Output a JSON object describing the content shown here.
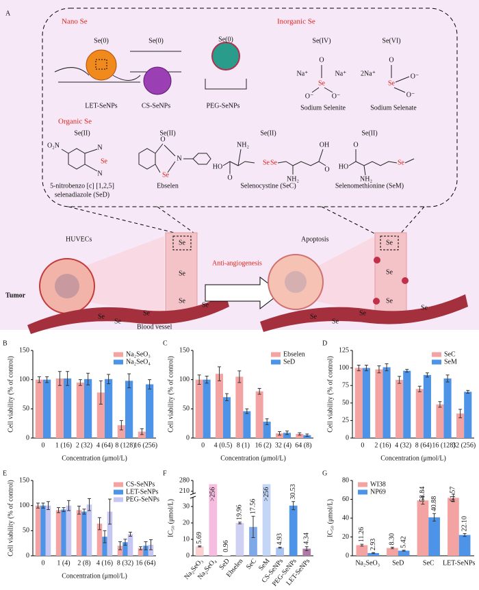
{
  "panel_a": {
    "label": "A",
    "titles": [
      "Nano Se",
      "Inorganic Se",
      "Organic Se"
    ],
    "compounds": [
      {
        "state": "Se(0)",
        "name_lines": [
          "LET-SeNPs"
        ]
      },
      {
        "state": "Se(0)",
        "name_lines": [
          "CS-SeNPs"
        ]
      },
      {
        "state": "Se(0)",
        "name_lines": [
          "PEG-SeNPs"
        ]
      },
      {
        "state": "Se(IV)",
        "name_lines": [
          "Sodium Selenite"
        ]
      },
      {
        "state": "Se(VI)",
        "name_lines": [
          "Sodium Selenate"
        ]
      },
      {
        "state": "Se(II)",
        "name_lines": [
          "5-nitrobenzo [c] [1,2,5]",
          "selenadiazole (SeD)"
        ]
      },
      {
        "state": "Se(II)",
        "name_lines": [
          "Ebselen"
        ]
      },
      {
        "state": "Se(II)",
        "name_lines": [
          "Selenocystine (SeC)"
        ]
      },
      {
        "state": "Se(II)",
        "name_lines": [
          "Selenomethionine (SeM)"
        ]
      }
    ],
    "atoms": [
      "Na⁺",
      "Na⁺",
      "O",
      "Se",
      "O⁻",
      "O⁻",
      "2Na⁺",
      "O",
      "Se",
      "O⁻",
      "O⁻",
      "O₂N",
      "N",
      "Se",
      "N",
      "O",
      "N",
      "Se",
      "HO",
      "O",
      "NH₂",
      "Se",
      "Se",
      "NH₂",
      "OH",
      "O",
      "HO",
      "O",
      "NH₂",
      "Se"
    ],
    "scene": {
      "cells": "HUVECs",
      "effect": "Anti-angiogenesis",
      "outcome": "Apoptosis",
      "tumor": "Tumor",
      "vessel": "Blood vessel",
      "element": "Se"
    }
  },
  "chart_data": [
    {
      "type": "bar",
      "panel": "B",
      "ylabel": "Cell viability (% of control)",
      "xlabel": "Concentration (μmol/L)",
      "categories": [
        "0",
        "1 (16)",
        "2 (32)",
        "4 (64)",
        "8 (128)",
        "16 (256)"
      ],
      "series": [
        {
          "name": "Na₂SeO₃",
          "color": "#f4a3a3",
          "values": [
            100,
            102,
            95,
            78,
            22,
            11
          ],
          "errors": [
            5,
            12,
            5,
            20,
            8,
            5
          ]
        },
        {
          "name": "Na₂SeO₄",
          "color": "#4d94e8",
          "values": [
            100,
            102,
            101,
            101,
            98,
            92
          ],
          "errors": [
            5,
            12,
            10,
            8,
            12,
            8
          ]
        }
      ],
      "ylim": [
        0,
        150
      ],
      "yticks": [
        0,
        50,
        100,
        150
      ],
      "legend": "top-right"
    },
    {
      "type": "bar",
      "panel": "C",
      "ylabel": "Cell viability (% of control)",
      "xlabel": "Concentration (μmol/L)",
      "categories": [
        "0",
        "4 (0.5)",
        "8 (1)",
        "16 (2)",
        "32 (4)",
        "64 (8)"
      ],
      "series": [
        {
          "name": "Ebselen",
          "color": "#f4a3a3",
          "values": [
            100,
            110,
            105,
            80,
            8,
            7
          ],
          "errors": [
            8,
            12,
            10,
            5,
            3,
            2
          ]
        },
        {
          "name": "SeD",
          "color": "#4d94e8",
          "values": [
            100,
            70,
            46,
            28,
            9,
            5
          ],
          "errors": [
            6,
            6,
            4,
            5,
            3,
            2
          ]
        }
      ],
      "ylim": [
        0,
        150
      ],
      "yticks": [
        0,
        50,
        100,
        150
      ],
      "legend": "top-right"
    },
    {
      "type": "bar",
      "panel": "D",
      "ylabel": "Cell viability (% of control)",
      "xlabel": "Concentration (μmol/L)",
      "categories": [
        "0",
        "2 (16)",
        "4 (32)",
        "8 (64)",
        "16 (128)",
        "32 (256)"
      ],
      "series": [
        {
          "name": "SeC",
          "color": "#f4a3a3",
          "values": [
            100,
            98,
            83,
            70,
            48,
            35
          ],
          "errors": [
            4,
            5,
            5,
            4,
            4,
            6
          ]
        },
        {
          "name": "SeM",
          "color": "#4d94e8",
          "values": [
            100,
            101,
            96,
            90,
            85,
            66
          ],
          "errors": [
            4,
            5,
            2,
            3,
            5,
            2
          ]
        }
      ],
      "ylim": [
        0,
        125
      ],
      "yticks": [
        0,
        25,
        50,
        75,
        100,
        125
      ],
      "legend": "top-right"
    },
    {
      "type": "bar",
      "panel": "E",
      "ylabel": "Cell viability (% of control)",
      "xlabel": "Concentration (μmol/L)",
      "categories": [
        "0",
        "1 (4)",
        "2 (8)",
        "4 (16)",
        "8 (32)",
        "16 (64)"
      ],
      "series": [
        {
          "name": "CS-SeNPs",
          "color": "#f4a3a3",
          "values": [
            100,
            91,
            91,
            64,
            20,
            15
          ],
          "errors": [
            5,
            5,
            8,
            12,
            8,
            3
          ]
        },
        {
          "name": "LET-SeNPs",
          "color": "#4d94e8",
          "values": [
            100,
            92,
            88,
            38,
            27,
            20
          ],
          "errors": [
            5,
            4,
            5,
            12,
            6,
            8
          ]
        },
        {
          "name": "PEG-SeNPs",
          "color": "#c6c6f2",
          "values": [
            100,
            100,
            102,
            88,
            43,
            22
          ],
          "errors": [
            8,
            10,
            12,
            25,
            4,
            10
          ]
        }
      ],
      "ylim": [
        0,
        150
      ],
      "yticks": [
        0,
        50,
        100,
        150
      ],
      "legend": "top-right"
    },
    {
      "type": "bar",
      "panel": "F",
      "ylabel": "IC₅₀ (μmol/L)",
      "categories": [
        "Na₂SeO₃",
        "Na₂SeO₄",
        "SeD",
        "Ebselen",
        "SeC",
        "SeM",
        "CS-SeNPs",
        "PEG-SeNPs",
        "LET-SeNPs"
      ],
      "values": [
        5.69,
        256,
        0.96,
        19.96,
        17.56,
        256,
        4.93,
        30.53,
        4.34
      ],
      "value_labels": [
        "5.69",
        ">256",
        "0.96",
        "19.96",
        "17.56",
        ">256",
        "4.93",
        "30.53",
        "4.34"
      ],
      "errors": [
        0.3,
        null,
        null,
        0.5,
        6.5,
        null,
        0.3,
        2.5,
        1.2
      ],
      "colors": [
        "#fbd0d0",
        "#f7bde0",
        "#ffffff",
        "#cfd0f2",
        "#7fa8e8",
        "#c4d6f6",
        "#a9c4f0",
        "#4d94e8",
        "#b07aa6"
      ],
      "ylim": [
        0,
        280
      ],
      "yticks": [
        0,
        10,
        20,
        30,
        210,
        280
      ],
      "ybreak": [
        35,
        200
      ]
    },
    {
      "type": "bar",
      "panel": "G",
      "ylabel": "IC₅₀ (μmol/L)",
      "categories": [
        "Na₂SeO₃",
        "SeD",
        "SeC",
        "LET-SeNPs"
      ],
      "series": [
        {
          "name": "WI38",
          "color": "#f4a3a3",
          "values": [
            11.26,
            8.3,
            58.84,
            61.57
          ],
          "value_labels": [
            "11.26",
            "8.30",
            "58.84",
            "61.57"
          ],
          "errors": [
            1,
            0.8,
            4,
            4
          ]
        },
        {
          "name": "NP69",
          "color": "#4d94e8",
          "values": [
            2.93,
            5.42,
            40.88,
            22.1
          ],
          "value_labels": [
            "2.93",
            "5.42",
            "40.88",
            "22.10"
          ],
          "errors": [
            0.5,
            0.5,
            4,
            1.5
          ]
        }
      ],
      "ylim": [
        0,
        80
      ],
      "yticks": [
        0,
        20,
        40,
        60,
        80
      ],
      "legend": "top-left"
    }
  ]
}
